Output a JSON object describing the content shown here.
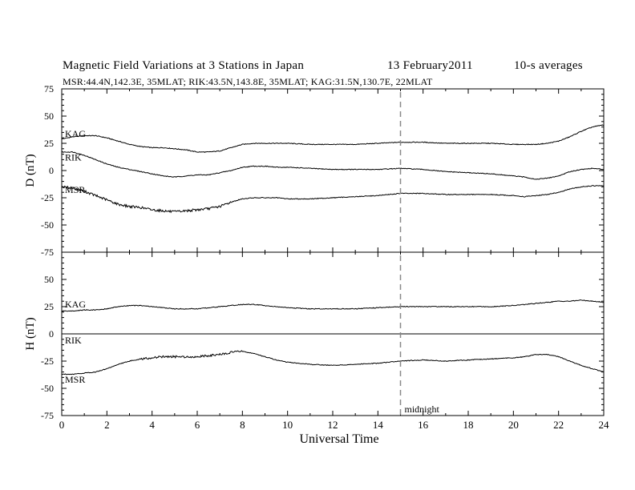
{
  "header": {
    "title": "Magnetic Field Variations at 3 Stations in Japan",
    "date": "13  February2011",
    "averaging": "10-s averages",
    "stations_line": "MSR:44.4N,142.3E, 35MLAT;  RIK:43.5N,143.8E, 35MLAT;  KAG:31.5N,130.7E, 22MLAT"
  },
  "chart_data": [
    {
      "type": "line",
      "panel": "D",
      "ylabel": "D (nT)",
      "ylim": [
        -75,
        75
      ],
      "yticks": [
        -75,
        -50,
        -25,
        0,
        25,
        50,
        75
      ],
      "xlim": [
        0,
        24
      ],
      "zero_line": false,
      "series": [
        {
          "name": "KAG",
          "x": [
            0,
            0.5,
            1,
            1.5,
            2,
            2.5,
            3,
            3.5,
            4,
            4.5,
            5,
            5.5,
            6,
            6.5,
            7,
            7.5,
            8,
            8.5,
            9,
            9.5,
            10,
            11,
            12,
            13,
            14,
            15,
            16,
            17,
            18,
            19,
            20,
            20.5,
            21,
            21.5,
            22,
            22.5,
            23,
            23.5,
            24
          ],
          "y": [
            29,
            31,
            32,
            32,
            30,
            27,
            24,
            22,
            21,
            21,
            20,
            19,
            17,
            17,
            18,
            21,
            24,
            25,
            25,
            25,
            25,
            24,
            24,
            24,
            25,
            26,
            26,
            25,
            25,
            25,
            24,
            24,
            24,
            25,
            27,
            31,
            36,
            40,
            42
          ]
        },
        {
          "name": "RIK",
          "x": [
            0,
            0.5,
            1,
            1.5,
            2,
            2.5,
            3,
            3.5,
            4,
            4.5,
            5,
            5.5,
            6,
            6.5,
            7,
            7.5,
            8,
            8.5,
            9,
            9.5,
            10,
            11,
            12,
            13,
            14,
            15,
            16,
            17,
            18,
            19,
            20,
            20.5,
            21,
            21.5,
            22,
            22.5,
            23,
            23.5,
            24
          ],
          "y": [
            17,
            17,
            14,
            10,
            6,
            3,
            1,
            -1,
            -3,
            -5,
            -6,
            -5,
            -4,
            -4,
            -2,
            0,
            3,
            4,
            4,
            3,
            3,
            2,
            1,
            1,
            1,
            2,
            1,
            -1,
            -2,
            -3,
            -5,
            -6,
            -8,
            -7,
            -5,
            -1,
            1,
            2,
            1
          ]
        },
        {
          "name": "MSR",
          "x": [
            0,
            0.5,
            1,
            1.5,
            2,
            2.5,
            3,
            3.5,
            4,
            4.5,
            5,
            5.5,
            6,
            6.5,
            7,
            7.5,
            8,
            8.5,
            9,
            9.5,
            10,
            11,
            12,
            13,
            14,
            15,
            16,
            17,
            18,
            19,
            20,
            20.5,
            21,
            21.5,
            22,
            22.5,
            23,
            23.5,
            24
          ],
          "y": [
            -15,
            -16,
            -19,
            -23,
            -27,
            -31,
            -33,
            -34,
            -36,
            -37,
            -38,
            -37,
            -36,
            -35,
            -33,
            -29,
            -26,
            -25,
            -25,
            -25,
            -26,
            -26,
            -25,
            -24,
            -23,
            -21,
            -21,
            -22,
            -22,
            -22,
            -23,
            -24,
            -23,
            -22,
            -20,
            -17,
            -15,
            -14,
            -14
          ]
        }
      ],
      "series_labels": {
        "KAG": "KAG",
        "RIK": "RIK",
        "MSR": "MSR"
      }
    },
    {
      "type": "line",
      "panel": "H",
      "ylabel": "H (nT)",
      "xlabel": "Universal Time",
      "ylim": [
        -75,
        75
      ],
      "yticks": [
        -75,
        -50,
        -25,
        0,
        25,
        50,
        75
      ],
      "xlim": [
        0,
        24
      ],
      "xticks": [
        0,
        2,
        4,
        6,
        8,
        10,
        12,
        14,
        16,
        18,
        20,
        22,
        24
      ],
      "zero_line": true,
      "series": [
        {
          "name": "KAG",
          "x": [
            0,
            0.5,
            1,
            1.5,
            2,
            2.5,
            3,
            3.5,
            4,
            4.5,
            5,
            5.5,
            6,
            6.5,
            7,
            7.5,
            8,
            8.5,
            9,
            9.5,
            10,
            11,
            12,
            13,
            14,
            15,
            16,
            17,
            18,
            19,
            20,
            20.5,
            21,
            21.5,
            22,
            22.5,
            23,
            23.5,
            24
          ],
          "y": [
            21,
            21,
            22,
            22,
            23,
            25,
            26,
            26,
            25,
            24,
            23,
            23,
            23,
            24,
            25,
            26,
            27,
            27,
            26,
            25,
            24,
            23,
            23,
            23,
            24,
            25,
            25,
            25,
            25,
            25,
            26,
            27,
            28,
            29,
            30,
            30,
            31,
            30,
            29
          ]
        },
        {
          "name": "RIK",
          "x": [
            0,
            24
          ],
          "y": [
            0,
            0
          ]
        },
        {
          "name": "MSR",
          "x": [
            0,
            0.5,
            1,
            1.5,
            2,
            2.5,
            3,
            3.5,
            4,
            4.5,
            5,
            5.5,
            6,
            6.5,
            7,
            7.5,
            8,
            8.5,
            9,
            9.5,
            10,
            11,
            12,
            13,
            14,
            15,
            16,
            17,
            18,
            19,
            20,
            20.5,
            21,
            21.5,
            22,
            22.5,
            23,
            23.5,
            24
          ],
          "y": [
            -37,
            -37,
            -36,
            -35,
            -32,
            -28,
            -25,
            -23,
            -22,
            -21,
            -21,
            -21,
            -21,
            -20,
            -19,
            -17,
            -16,
            -18,
            -21,
            -24,
            -26,
            -28,
            -29,
            -28,
            -27,
            -25,
            -24,
            -25,
            -24,
            -23,
            -22,
            -21,
            -19,
            -19,
            -21,
            -25,
            -29,
            -32,
            -35
          ]
        }
      ],
      "series_labels": {
        "KAG": "KAG",
        "RIK": "RIK",
        "MSR": "MSR"
      },
      "annotations": [
        {
          "x": 15,
          "text": "midnight",
          "style": "dashed-vertical"
        }
      ]
    }
  ]
}
